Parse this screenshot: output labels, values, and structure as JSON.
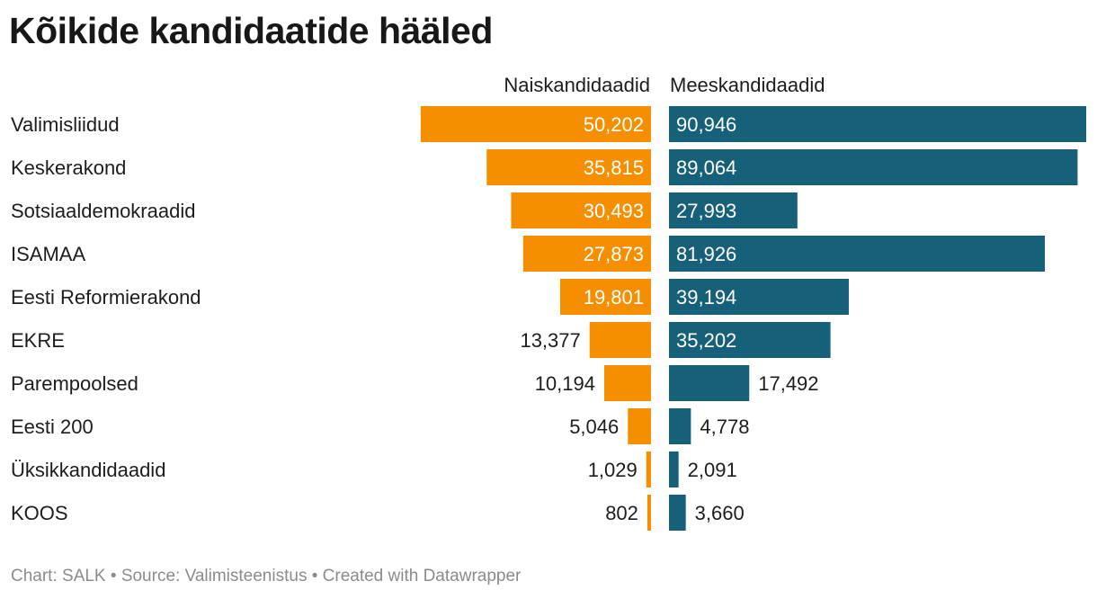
{
  "chart_data": {
    "type": "bar",
    "title": "Kõikide kandidaatide hääled",
    "categories": [
      "Valimisliidud",
      "Keskerakond",
      "Sotsiaaldemokraadid",
      "ISAMAA",
      "Eesti Reformierakond",
      "EKRE",
      "Parempoolsed",
      "Eesti 200",
      "Üksikkandidaadid",
      "KOOS"
    ],
    "series": [
      {
        "name": "Naiskandidaadid",
        "color": "#f68f00",
        "values": [
          50202,
          35815,
          30493,
          27873,
          19801,
          13377,
          10194,
          5046,
          1029,
          802
        ],
        "labels": [
          "50,202",
          "35,815",
          "30,493",
          "27,873",
          "19,801",
          "13,377",
          "10,194",
          "5,046",
          "1,029",
          "802"
        ]
      },
      {
        "name": "Meeskandidaadid",
        "color": "#17607a",
        "values": [
          90946,
          89064,
          27993,
          81926,
          39194,
          35202,
          17492,
          4778,
          2091,
          3660
        ],
        "labels": [
          "90,946",
          "89,064",
          "27,993",
          "81,926",
          "39,194",
          "35,202",
          "17,492",
          "4,778",
          "2,091",
          "3,660"
        ]
      }
    ],
    "max_value": 90946
  },
  "footer": {
    "text": "Chart: SALK • Source: Valimisteenistus • Created with Datawrapper"
  }
}
